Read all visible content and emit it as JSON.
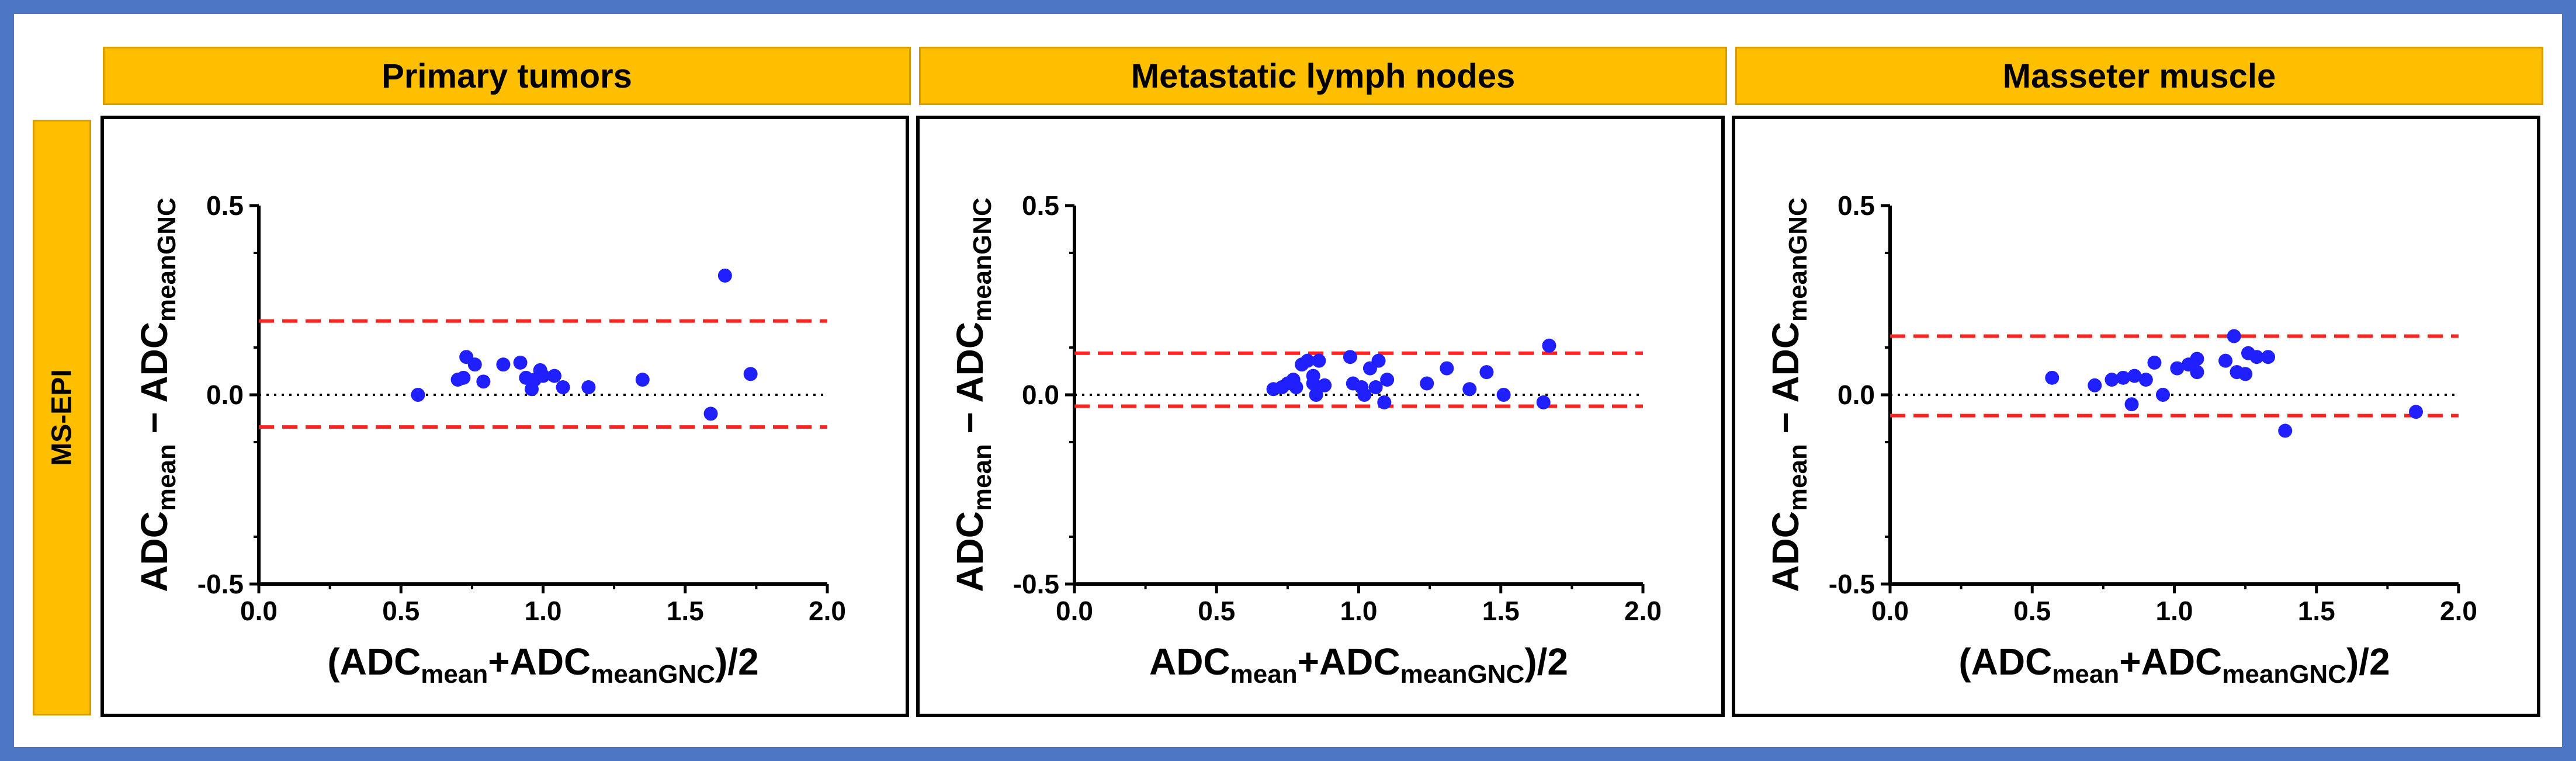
{
  "row_header": "MS-EPI",
  "colors": {
    "frame": "#4a76c4",
    "header_bg": "#fdbf00",
    "points": "#1f1fff",
    "limits": "#ff2020",
    "zero_line": "#000000"
  },
  "chart_data": [
    {
      "type": "scatter",
      "subtype": "bland-altman",
      "title": "Primary tumors",
      "xlabel": {
        "main": "(ADC",
        "sub1": "mean",
        "mid": "+ADC",
        "sub2": "meanGNC",
        "end": ")/2"
      },
      "ylabel": {
        "a": "ADC",
        "a_sub": "mean",
        "op": " − ",
        "b": "ADC",
        "b_sub": "meanGNC"
      },
      "xlim": [
        0.0,
        2.0
      ],
      "ylim": [
        -0.5,
        0.5
      ],
      "xticks": [
        "0.0",
        "0.5",
        "1.0",
        "1.5",
        "2.0"
      ],
      "yticks": [
        "-0.5",
        "0.0",
        "0.5"
      ],
      "upper_loa": 0.195,
      "lower_loa": -0.085,
      "mean_line": 0.0,
      "points": [
        [
          0.56,
          0.0
        ],
        [
          0.7,
          0.04
        ],
        [
          0.72,
          0.045
        ],
        [
          0.73,
          0.1
        ],
        [
          0.76,
          0.08
        ],
        [
          0.79,
          0.035
        ],
        [
          0.86,
          0.08
        ],
        [
          0.92,
          0.085
        ],
        [
          0.94,
          0.045
        ],
        [
          0.96,
          0.015
        ],
        [
          0.97,
          0.04
        ],
        [
          0.99,
          0.065
        ],
        [
          1.0,
          0.05
        ],
        [
          1.04,
          0.05
        ],
        [
          1.07,
          0.02
        ],
        [
          1.16,
          0.02
        ],
        [
          1.35,
          0.04
        ],
        [
          1.59,
          -0.05
        ],
        [
          1.64,
          0.315
        ],
        [
          1.73,
          0.055
        ]
      ]
    },
    {
      "type": "scatter",
      "subtype": "bland-altman",
      "title": "Metastatic lymph nodes",
      "xlabel": {
        "main": "ADC",
        "sub1": "mean",
        "mid": "+ADC",
        "sub2": "meanGNC",
        "end": ")/2"
      },
      "ylabel": {
        "a": "ADC",
        "a_sub": "mean",
        "op": " − ",
        "b": "ADC",
        "b_sub": "meanGNC"
      },
      "xlim": [
        0.0,
        2.0
      ],
      "ylim": [
        -0.5,
        0.5
      ],
      "xticks": [
        "0.0",
        "0.5",
        "1.0",
        "1.5",
        "2.0"
      ],
      "yticks": [
        "-0.5",
        "0.0",
        "0.5"
      ],
      "upper_loa": 0.11,
      "lower_loa": -0.03,
      "mean_line": 0.0,
      "points": [
        [
          0.7,
          0.015
        ],
        [
          0.73,
          0.02
        ],
        [
          0.75,
          0.03
        ],
        [
          0.77,
          0.04
        ],
        [
          0.78,
          0.02
        ],
        [
          0.8,
          0.08
        ],
        [
          0.82,
          0.09
        ],
        [
          0.84,
          0.05
        ],
        [
          0.84,
          0.03
        ],
        [
          0.85,
          0.0
        ],
        [
          0.86,
          0.09
        ],
        [
          0.88,
          0.025
        ],
        [
          0.97,
          0.1
        ],
        [
          0.98,
          0.03
        ],
        [
          1.01,
          0.02
        ],
        [
          1.02,
          0.0
        ],
        [
          1.04,
          0.07
        ],
        [
          1.06,
          0.02
        ],
        [
          1.07,
          0.09
        ],
        [
          1.09,
          -0.02
        ],
        [
          1.1,
          0.04
        ],
        [
          1.24,
          0.03
        ],
        [
          1.31,
          0.07
        ],
        [
          1.39,
          0.015
        ],
        [
          1.45,
          0.06
        ],
        [
          1.51,
          0.0
        ],
        [
          1.65,
          -0.02
        ],
        [
          1.67,
          0.13
        ]
      ]
    },
    {
      "type": "scatter",
      "subtype": "bland-altman",
      "title": "Masseter muscle",
      "xlabel": {
        "main": "(ADC",
        "sub1": "mean",
        "mid": "+ADC",
        "sub2": "meanGNC",
        "end": ")/2"
      },
      "ylabel": {
        "a": "ADC",
        "a_sub": "mean",
        "op": " − ",
        "b": "ADC",
        "b_sub": "meanGNC"
      },
      "xlim": [
        0.0,
        2.0
      ],
      "ylim": [
        -0.5,
        0.5
      ],
      "xticks": [
        "0.0",
        "0.5",
        "1.0",
        "1.5",
        "2.0"
      ],
      "yticks": [
        "-0.5",
        "0.0",
        "0.5"
      ],
      "upper_loa": 0.155,
      "lower_loa": -0.055,
      "mean_line": 0.0,
      "points": [
        [
          0.57,
          0.045
        ],
        [
          0.72,
          0.025
        ],
        [
          0.78,
          0.04
        ],
        [
          0.82,
          0.045
        ],
        [
          0.85,
          -0.025
        ],
        [
          0.86,
          0.05
        ],
        [
          0.9,
          0.04
        ],
        [
          0.93,
          0.085
        ],
        [
          0.96,
          0.0
        ],
        [
          1.01,
          0.07
        ],
        [
          1.05,
          0.08
        ],
        [
          1.08,
          0.095
        ],
        [
          1.08,
          0.06
        ],
        [
          1.18,
          0.09
        ],
        [
          1.21,
          0.155
        ],
        [
          1.22,
          0.06
        ],
        [
          1.25,
          0.055
        ],
        [
          1.26,
          0.11
        ],
        [
          1.29,
          0.1
        ],
        [
          1.33,
          0.1
        ],
        [
          1.39,
          -0.095
        ],
        [
          1.85,
          -0.045
        ]
      ]
    }
  ]
}
